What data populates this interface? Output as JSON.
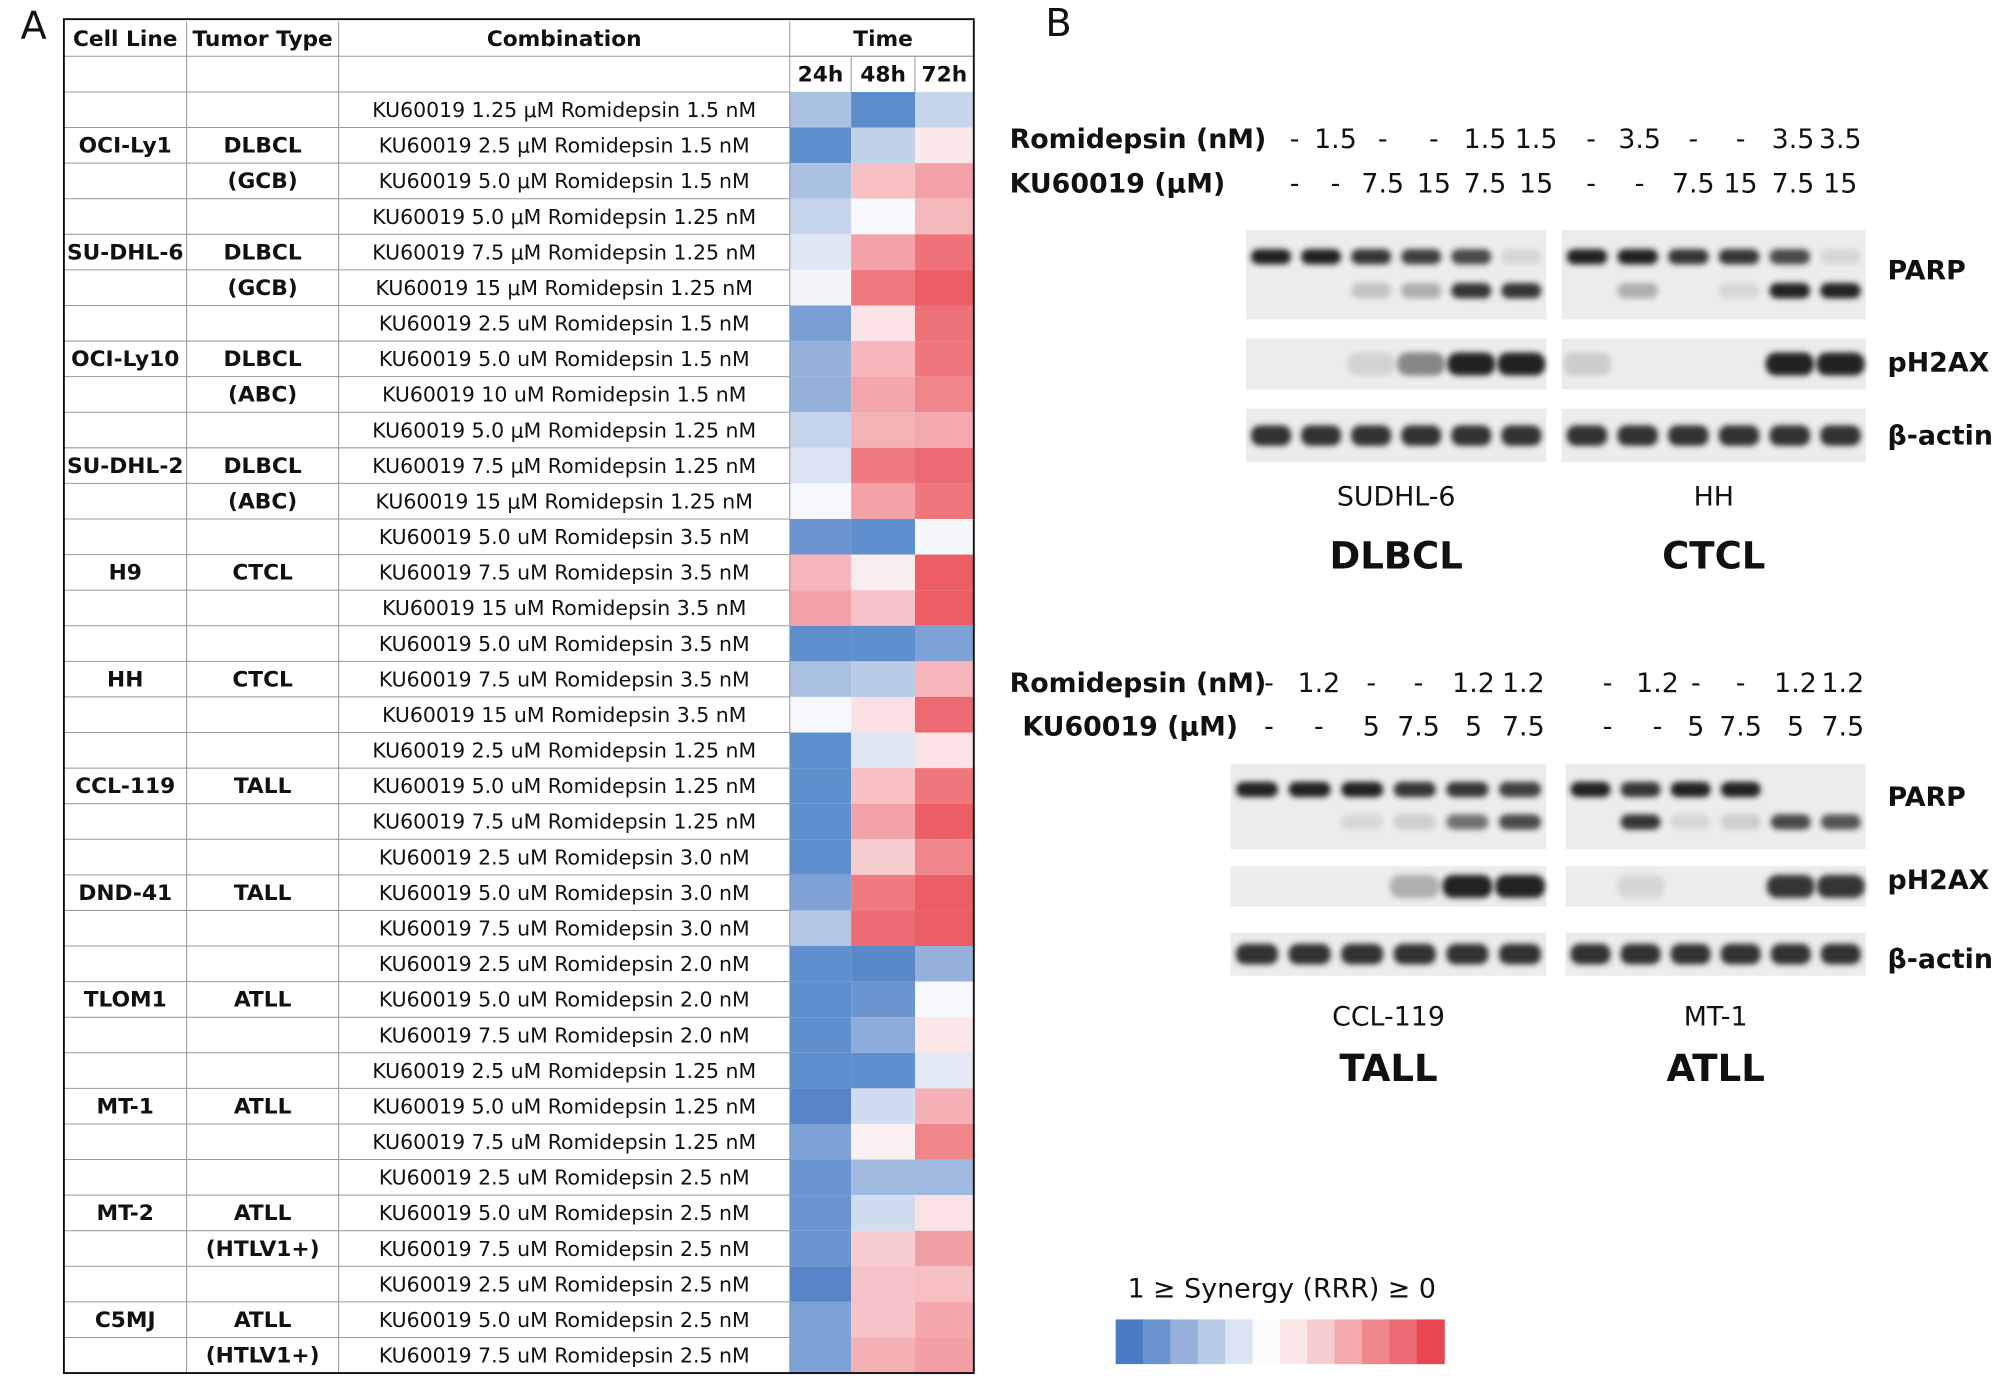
{
  "panel_a": {
    "label": "A",
    "header": {
      "cell_line": "Cell Line",
      "tumor_type": "Tumor Type",
      "combination": "Combination",
      "time": "Time",
      "times": [
        "24h",
        "48h",
        "72h"
      ]
    },
    "rows": [
      [
        null,
        null,
        "KU60019 1.25 μM Romidepsin 1.5 nM"
      ],
      [
        "OCI-Ly1",
        "DLBCL",
        "KU60019 2.5 μM Romidepsin 1.5 nM"
      ],
      [
        null,
        "(GCB)",
        "KU60019 5.0 μM Romidepsin 1.5 nM"
      ],
      [
        null,
        null,
        "KU60019 5.0 μM Romidepsin 1.25 nM"
      ],
      [
        "SU-DHL-6",
        "DLBCL",
        "KU60019 7.5 μM Romidepsin 1.25 nM"
      ],
      [
        null,
        "(GCB)",
        "KU60019 15 μM Romidepsin 1.25 nM"
      ],
      [
        null,
        null,
        "KU60019 2.5 uM Romidepsin 1.5 nM"
      ],
      [
        "OCI-Ly10",
        "DLBCL",
        "KU60019 5.0 uM Romidepsin 1.5 nM"
      ],
      [
        null,
        "(ABC)",
        "KU60019 10 uM Romidepsin 1.5 nM"
      ],
      [
        null,
        null,
        "KU60019 5.0 μM Romidepsin 1.25 nM"
      ],
      [
        "SU-DHL-2",
        "DLBCL",
        "KU60019 7.5 μM Romidepsin 1.25 nM"
      ],
      [
        null,
        "(ABC)",
        "KU60019 15 μM Romidepsin 1.25 nM"
      ],
      [
        null,
        null,
        "KU60019 5.0 uM Romidepsin 3.5 nM"
      ],
      [
        "H9",
        "CTCL",
        "KU60019 7.5 uM Romidepsin 3.5 nM"
      ],
      [
        null,
        null,
        "KU60019 15 uM Romidepsin 3.5 nM"
      ],
      [
        null,
        null,
        "KU60019 5.0 uM Romidepsin 3.5 nM"
      ],
      [
        "HH",
        "CTCL",
        "KU60019 7.5 uM Romidepsin 3.5 nM"
      ],
      [
        null,
        null,
        "KU60019 15 uM Romidepsin 3.5 nM"
      ],
      [
        null,
        null,
        "KU60019 2.5 uM Romidepsin 1.25 nM"
      ],
      [
        "CCL-119",
        "TALL",
        "KU60019 5.0 uM Romidepsin 1.25 nM"
      ],
      [
        null,
        null,
        "KU60019 7.5 uM Romidepsin 1.25 nM"
      ],
      [
        null,
        null,
        "KU60019 2.5 uM Romidepsin 3.0 nM"
      ],
      [
        "DND-41",
        "TALL",
        "KU60019 5.0 uM Romidepsin 3.0 nM"
      ],
      [
        null,
        null,
        "KU60019 7.5 uM Romidepsin 3.0 nM"
      ],
      [
        null,
        null,
        "KU60019 2.5 uM Romidepsin 2.0 nM"
      ],
      [
        "TLOM1",
        "ATLL",
        "KU60019 5.0 uM Romidepsin 2.0 nM"
      ],
      [
        null,
        null,
        "KU60019 7.5 uM Romidepsin 2.0 nM"
      ],
      [
        null,
        null,
        "KU60019 2.5 uM Romidepsin 1.25 nM"
      ],
      [
        "MT-1",
        "ATLL",
        "KU60019 5.0 uM Romidepsin 1.25 nM"
      ],
      [
        null,
        null,
        "KU60019 7.5 uM Romidepsin 1.25 nM"
      ],
      [
        null,
        null,
        "KU60019 2.5 uM Romidepsin 2.5 nM"
      ],
      [
        "MT-2",
        "ATLL",
        "KU60019 5.0 uM Romidepsin 2.5 nM"
      ],
      [
        null,
        "(HTLV1+)",
        "KU60019 7.5 uM Romidepsin 2.5 nM"
      ],
      [
        null,
        null,
        "KU60019 2.5 uM Romidepsin 2.5 nM"
      ],
      [
        "C5MJ",
        "ATLL",
        "KU60019 5.0 uM Romidepsin 2.5 nM"
      ],
      [
        null,
        "(HTLV1+)",
        "KU60019 7.5 uM Romidepsin 2.5 nM"
      ]
    ],
    "cell_colors": [
      [
        "#a9c0e0",
        "#5b8ccc",
        "#c8d6ec"
      ],
      [
        "#5f8fcd",
        "#c0d1ea",
        "#fbe8ea"
      ],
      [
        "#a9c0e0",
        "#f6c0c4",
        "#f2a2a8"
      ],
      [
        "#c6d5ec",
        "#f7f8fc",
        "#f5b8bd"
      ],
      [
        "#dfe6f4",
        "#f2a2a8",
        "#ee7278"
      ],
      [
        "#f3f5fb",
        "#ee7a80",
        "#eb5e66"
      ],
      [
        "#7a9fd4",
        "#fbe2e4",
        "#ee7379"
      ],
      [
        "#95b1da",
        "#f5b5ba",
        "#ee767c"
      ],
      [
        "#95b1da",
        "#f3a7ad",
        "#ef858b"
      ],
      [
        "#c6d5ec",
        "#f4b2b7",
        "#f3a9ae"
      ],
      [
        "#dbe4f3",
        "#ee7a80",
        "#ec6a71"
      ],
      [
        "#f7f8fc",
        "#f3a2a8",
        "#ee767c"
      ],
      [
        "#6b95d0",
        "#5f8fcd",
        "#f5f7fb"
      ],
      [
        "#f5b5ba",
        "#f8eef0",
        "#ec5d64"
      ],
      [
        "#f3a2a8",
        "#f6c4c8",
        "#ec5d64"
      ],
      [
        "#5f8fcd",
        "#5f8fcd",
        "#7ea2d5"
      ],
      [
        "#a9c0e0",
        "#b7cae6",
        "#f5b5ba"
      ],
      [
        "#f7f8fc",
        "#fae0e2",
        "#ec6a71"
      ],
      [
        "#5f8fcd",
        "#dfe6f4",
        "#fbe2e4"
      ],
      [
        "#5f8fcd",
        "#f6c0c4",
        "#ee767c"
      ],
      [
        "#5f8fcd",
        "#f3a2a8",
        "#eb5e66"
      ],
      [
        "#5f8fcd",
        "#f7cdd0",
        "#ef868c"
      ],
      [
        "#7ea2d5",
        "#ee7a80",
        "#eb5e66"
      ],
      [
        "#b3c6e4",
        "#ec6a71",
        "#eb5e66"
      ],
      [
        "#5f8fcd",
        "#5a89ca",
        "#95b1da"
      ],
      [
        "#5f8fcd",
        "#6b95d0",
        "#f7f8fc"
      ],
      [
        "#5f8fcd",
        "#8eacd9",
        "#fbe6e8"
      ],
      [
        "#5f8fcd",
        "#5f8fcd",
        "#e2e9f5"
      ],
      [
        "#5885c8",
        "#d0dcef",
        "#f4b0b5"
      ],
      [
        "#7ea2d5",
        "#fbf0f2",
        "#ef868c"
      ],
      [
        "#6b95d0",
        "#a0b9de",
        "#a0b9de"
      ],
      [
        "#6b95d0",
        "#d0dcef",
        "#fbe2e4"
      ],
      [
        "#6b95d0",
        "#f7cdd0",
        "#f2a0a6"
      ],
      [
        "#5885c8",
        "#f6c4c8",
        "#f6c0c4"
      ],
      [
        "#7ea2d5",
        "#f6c4c8",
        "#f3a7ad"
      ],
      [
        "#7ea2d5",
        "#f4b0b5",
        "#f2a0a6"
      ]
    ]
  },
  "panel_b": {
    "label": "B",
    "proteins": [
      "PARP",
      "pH2AX",
      "β-actin"
    ],
    "blocks": [
      {
        "romidepsin_label": "Romidepsin (nM)",
        "ku_label": "KU60019 (μM)",
        "groups": [
          {
            "romidepsin": [
              "-",
              "1.5",
              "-",
              "-",
              "1.5",
              "1.5"
            ],
            "ku": [
              "-",
              "-",
              "7.5",
              "15",
              "7.5",
              "15"
            ],
            "cell_line": "SUDHL-6",
            "tumor": "DLBCL"
          },
          {
            "romidepsin": [
              "-",
              "3.5",
              "-",
              "-",
              "3.5",
              "3.5"
            ],
            "ku": [
              "-",
              "-",
              "7.5",
              "15",
              "7.5",
              "15"
            ],
            "cell_line": "HH",
            "tumor": "CTCL"
          }
        ]
      },
      {
        "romidepsin_label": "Romidepsin (nM)",
        "ku_label": "KU60019 (μM)",
        "groups": [
          {
            "romidepsin": [
              "-",
              "1.2",
              "-",
              "-",
              "1.2",
              "1.2"
            ],
            "ku": [
              "-",
              "-",
              "5",
              "7.5",
              "5",
              "7.5"
            ],
            "cell_line": "CCL-119",
            "tumor": "TALL"
          },
          {
            "romidepsin": [
              "-",
              "1.2",
              "-",
              "-",
              "1.2",
              "1.2"
            ],
            "ku": [
              "-",
              "-",
              "5",
              "7.5",
              "5",
              "7.5"
            ],
            "cell_line": "MT-1",
            "tumor": "ATLL"
          }
        ]
      }
    ],
    "legend": {
      "title": "1 ≥ Synergy (RRR) ≥ 0",
      "colors": [
        "#4a7cc3",
        "#6b95d0",
        "#95b1da",
        "#b7cae6",
        "#dbe4f3",
        "#fafbfd",
        "#fbe6e8",
        "#f7cdd0",
        "#f3a9ae",
        "#ef868c",
        "#ec6a71",
        "#e84650"
      ]
    }
  }
}
